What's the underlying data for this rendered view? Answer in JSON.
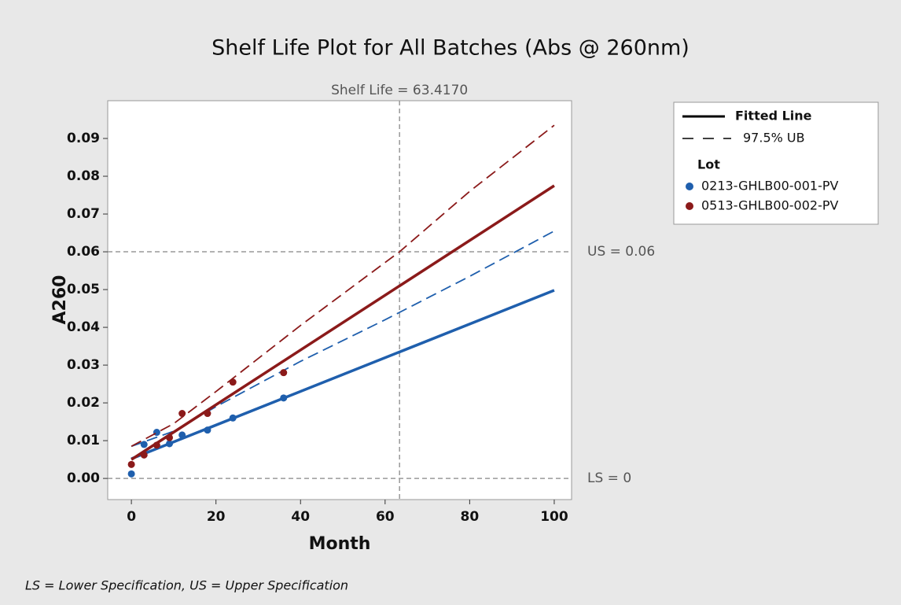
{
  "chart_data": {
    "type": "scatter",
    "title": "Shelf Life Plot for All Batches (Abs @ 260nm)",
    "xlabel": "Month",
    "ylabel": "A260",
    "xlim": [
      -5.6,
      104.1
    ],
    "ylim": [
      -0.0056,
      0.1
    ],
    "xticks": [
      0,
      20,
      40,
      60,
      80,
      100
    ],
    "yticks": [
      {
        "value": 0,
        "label": "0.00"
      },
      0.01,
      0.02,
      0.03,
      0.04,
      0.05,
      0.06,
      0.07,
      0.08,
      0.09
    ],
    "legend": {
      "fit_label": "Fitted Line",
      "ub_label": "97.5% UB",
      "title": "Lot"
    },
    "series": [
      {
        "name": "0213-GHLB00-001-PV",
        "color": "#1f5fad",
        "x": [
          0,
          3,
          6,
          9,
          12,
          18,
          24,
          36
        ],
        "values": [
          0.0012,
          0.009,
          0.0122,
          0.0092,
          0.0115,
          0.0128,
          0.016,
          0.0213
        ],
        "fit_x": [
          0,
          100
        ],
        "fit_values": [
          0.0052,
          0.0498
        ],
        "ub_x": [
          0,
          10,
          20,
          40,
          60,
          80,
          100
        ],
        "ub_values": [
          0.0085,
          0.0125,
          0.019,
          0.031,
          0.042,
          0.0535,
          0.0655
        ]
      },
      {
        "name": "0513-GHLB00-002-PV",
        "color": "#8b1a1a",
        "x": [
          0,
          3,
          6,
          9,
          12,
          18,
          24,
          36
        ],
        "values": [
          0.0037,
          0.0062,
          0.0088,
          0.0108,
          0.0172,
          0.0172,
          0.0255,
          0.028
        ],
        "fit_x": [
          0,
          100
        ],
        "fit_values": [
          0.005,
          0.0775
        ],
        "ub_x": [
          0,
          10,
          20,
          40,
          63.4,
          80,
          100
        ],
        "ub_values": [
          0.0085,
          0.0145,
          0.023,
          0.0405,
          0.06,
          0.076,
          0.0935
        ]
      }
    ],
    "reference_lines": [
      {
        "axis": "y",
        "value": 0.06,
        "label": "US = 0.06"
      },
      {
        "axis": "y",
        "value": 0,
        "label": "LS = 0"
      },
      {
        "axis": "x",
        "value": 63.417,
        "label": "Shelf Life = 63.4170"
      }
    ],
    "footnote": "LS = Lower Specification, US = Upper Specification"
  }
}
